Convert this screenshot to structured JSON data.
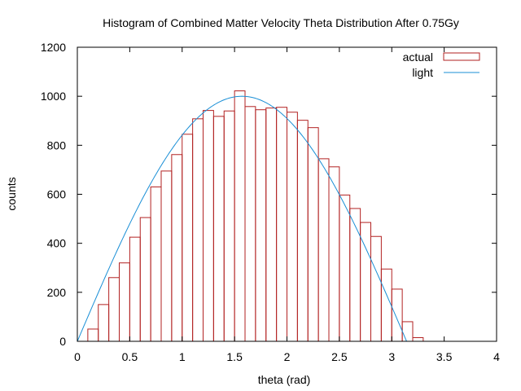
{
  "chart_data": {
    "type": "bar",
    "title": "Histogram of Combined Matter Velocity Theta Distribution After 0.75Gy",
    "xlabel": "theta (rad)",
    "ylabel": "counts",
    "xlim": [
      0,
      4
    ],
    "ylim": [
      0,
      1200
    ],
    "xticks": [
      "0",
      "0.5",
      "1",
      "1.5",
      "2",
      "2.5",
      "3",
      "3.5",
      "4"
    ],
    "yticks": [
      "0",
      "200",
      "400",
      "600",
      "800",
      "1000",
      "1200"
    ],
    "bin_width": 0.1,
    "bins": [
      {
        "x": 0.0,
        "y": 0
      },
      {
        "x": 0.1,
        "y": 50
      },
      {
        "x": 0.2,
        "y": 150
      },
      {
        "x": 0.3,
        "y": 260
      },
      {
        "x": 0.4,
        "y": 320
      },
      {
        "x": 0.5,
        "y": 425
      },
      {
        "x": 0.6,
        "y": 505
      },
      {
        "x": 0.7,
        "y": 630
      },
      {
        "x": 0.8,
        "y": 695
      },
      {
        "x": 0.9,
        "y": 762
      },
      {
        "x": 1.0,
        "y": 845
      },
      {
        "x": 1.1,
        "y": 908
      },
      {
        "x": 1.2,
        "y": 942
      },
      {
        "x": 1.3,
        "y": 918
      },
      {
        "x": 1.4,
        "y": 940
      },
      {
        "x": 1.5,
        "y": 1022
      },
      {
        "x": 1.6,
        "y": 958
      },
      {
        "x": 1.7,
        "y": 945
      },
      {
        "x": 1.8,
        "y": 952
      },
      {
        "x": 1.9,
        "y": 955
      },
      {
        "x": 2.0,
        "y": 935
      },
      {
        "x": 2.1,
        "y": 902
      },
      {
        "x": 2.2,
        "y": 872
      },
      {
        "x": 2.3,
        "y": 745
      },
      {
        "x": 2.4,
        "y": 712
      },
      {
        "x": 2.5,
        "y": 597
      },
      {
        "x": 2.6,
        "y": 542
      },
      {
        "x": 2.7,
        "y": 485
      },
      {
        "x": 2.8,
        "y": 428
      },
      {
        "x": 2.9,
        "y": 295
      },
      {
        "x": 3.0,
        "y": 213
      },
      {
        "x": 3.1,
        "y": 80
      },
      {
        "x": 3.2,
        "y": 15
      }
    ],
    "series": [
      {
        "name": "actual",
        "kind": "histogram",
        "color": "#b22222"
      },
      {
        "name": "light",
        "kind": "curve",
        "formula": "1000*sin(theta)",
        "x_range": [
          0,
          3.14159
        ],
        "color": "#1a8fd6"
      }
    ],
    "legend_position": "top-right",
    "grid": false
  }
}
